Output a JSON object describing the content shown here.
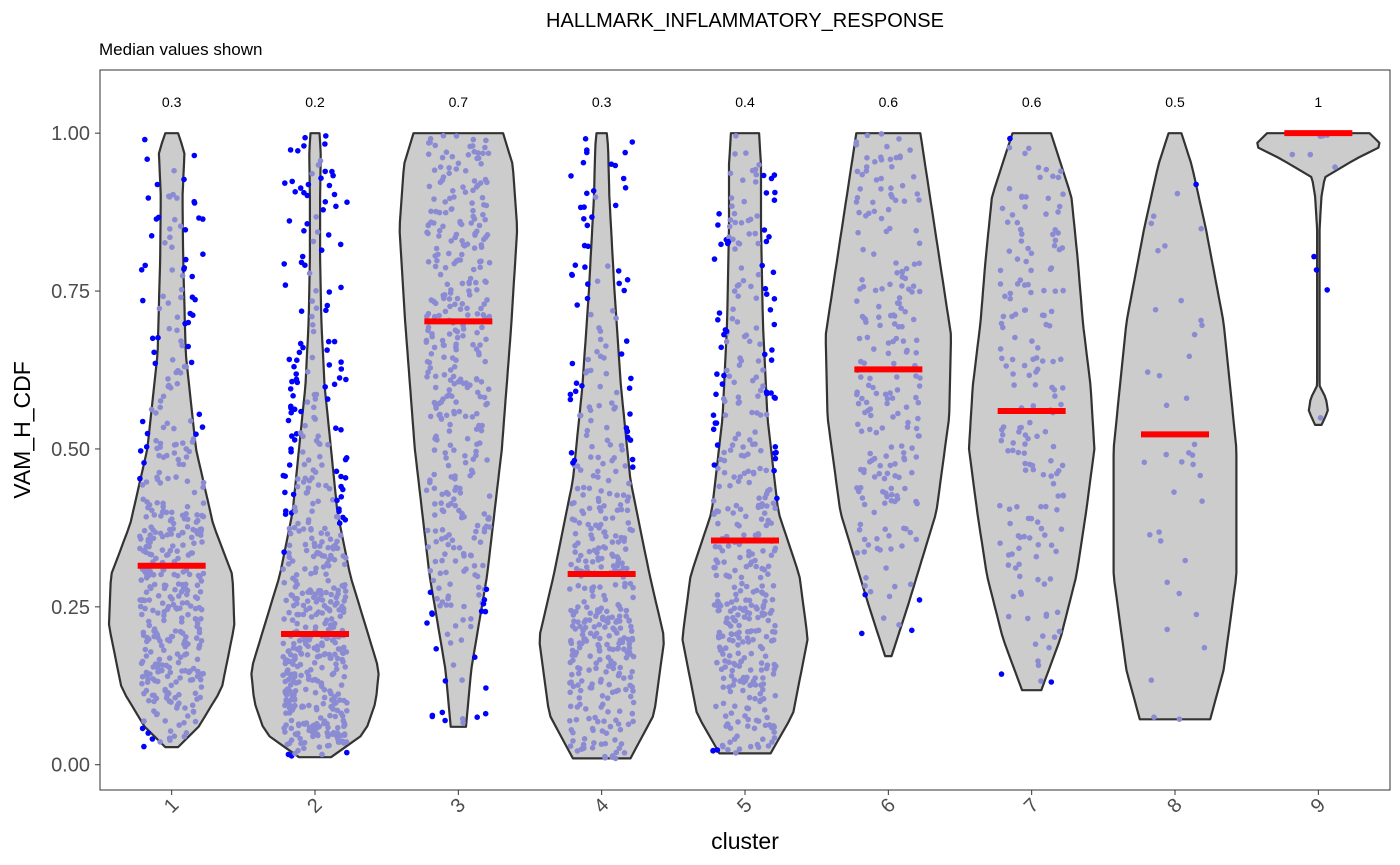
{
  "chart_data": {
    "type": "violin",
    "title": "HALLMARK_INFLAMMATORY_RESPONSE",
    "subtitle": "Median values shown",
    "xlabel": "cluster",
    "ylabel": "VAM_H_CDF",
    "categories": [
      "1",
      "2",
      "3",
      "4",
      "5",
      "6",
      "7",
      "8",
      "9"
    ],
    "ylim": [
      -0.04,
      1.1
    ],
    "yticks": [
      0.0,
      0.25,
      0.5,
      0.75,
      1.0
    ],
    "ytick_labels": [
      "0.00",
      "0.25",
      "0.50",
      "0.75",
      "1.00"
    ],
    "median_labels": [
      "0.3",
      "0.2",
      "0.7",
      "0.3",
      "0.4",
      "0.6",
      "0.6",
      "0.5",
      "1"
    ],
    "medians": [
      0.315,
      0.207,
      0.702,
      0.302,
      0.355,
      0.626,
      0.56,
      0.523,
      1.0
    ],
    "ranges": [
      [
        0.028,
        1.0
      ],
      [
        0.012,
        1.0
      ],
      [
        0.06,
        1.0
      ],
      [
        0.01,
        1.0
      ],
      [
        0.018,
        1.0
      ],
      [
        0.172,
        1.0
      ],
      [
        0.118,
        1.0
      ],
      [
        0.072,
        1.0
      ],
      [
        0.538,
        1.0
      ]
    ],
    "violin_profiles": [
      [
        [
          0.028,
          0.1
        ],
        [
          0.06,
          0.42
        ],
        [
          0.12,
          0.78
        ],
        [
          0.22,
          0.98
        ],
        [
          0.3,
          0.95
        ],
        [
          0.38,
          0.65
        ],
        [
          0.5,
          0.38
        ],
        [
          0.65,
          0.22
        ],
        [
          0.8,
          0.18
        ],
        [
          0.9,
          0.17
        ],
        [
          0.97,
          0.2
        ],
        [
          1.0,
          0.1
        ]
      ],
      [
        [
          0.012,
          0.25
        ],
        [
          0.05,
          0.78
        ],
        [
          0.1,
          0.95
        ],
        [
          0.15,
          1.0
        ],
        [
          0.2,
          0.85
        ],
        [
          0.3,
          0.55
        ],
        [
          0.4,
          0.35
        ],
        [
          0.5,
          0.25
        ],
        [
          0.6,
          0.15
        ],
        [
          0.7,
          0.1
        ],
        [
          0.8,
          0.08
        ],
        [
          0.9,
          0.08
        ],
        [
          0.97,
          0.09
        ],
        [
          1.0,
          0.07
        ]
      ],
      [
        [
          0.06,
          0.12
        ],
        [
          0.15,
          0.2
        ],
        [
          0.3,
          0.45
        ],
        [
          0.5,
          0.68
        ],
        [
          0.7,
          0.83
        ],
        [
          0.85,
          0.92
        ],
        [
          0.95,
          0.85
        ],
        [
          1.0,
          0.7
        ]
      ],
      [
        [
          0.01,
          0.45
        ],
        [
          0.08,
          0.82
        ],
        [
          0.2,
          0.98
        ],
        [
          0.3,
          0.75
        ],
        [
          0.45,
          0.45
        ],
        [
          0.6,
          0.3
        ],
        [
          0.75,
          0.2
        ],
        [
          0.9,
          0.12
        ],
        [
          0.98,
          0.1
        ],
        [
          1.0,
          0.08
        ]
      ],
      [
        [
          0.018,
          0.4
        ],
        [
          0.08,
          0.75
        ],
        [
          0.2,
          0.98
        ],
        [
          0.3,
          0.85
        ],
        [
          0.4,
          0.52
        ],
        [
          0.55,
          0.35
        ],
        [
          0.7,
          0.28
        ],
        [
          0.85,
          0.25
        ],
        [
          0.95,
          0.25
        ],
        [
          1.0,
          0.22
        ]
      ],
      [
        [
          0.172,
          0.05
        ],
        [
          0.25,
          0.3
        ],
        [
          0.4,
          0.75
        ],
        [
          0.55,
          0.95
        ],
        [
          0.68,
          0.98
        ],
        [
          0.8,
          0.8
        ],
        [
          0.9,
          0.65
        ],
        [
          1.0,
          0.5
        ]
      ],
      [
        [
          0.118,
          0.15
        ],
        [
          0.2,
          0.45
        ],
        [
          0.3,
          0.7
        ],
        [
          0.4,
          0.85
        ],
        [
          0.5,
          0.98
        ],
        [
          0.6,
          0.92
        ],
        [
          0.7,
          0.8
        ],
        [
          0.8,
          0.72
        ],
        [
          0.9,
          0.62
        ],
        [
          1.0,
          0.3
        ]
      ],
      [
        [
          0.072,
          0.55
        ],
        [
          0.15,
          0.76
        ],
        [
          0.3,
          0.96
        ],
        [
          0.5,
          0.96
        ],
        [
          0.7,
          0.76
        ],
        [
          0.85,
          0.48
        ],
        [
          0.95,
          0.26
        ],
        [
          1.0,
          0.1
        ]
      ],
      [
        [
          0.538,
          0.05
        ],
        [
          0.56,
          0.15
        ],
        [
          0.58,
          0.12
        ],
        [
          0.6,
          0.02
        ],
        [
          0.85,
          0.02
        ],
        [
          0.9,
          0.05
        ],
        [
          0.93,
          0.1
        ],
        [
          0.96,
          0.6
        ],
        [
          0.98,
          1.0
        ],
        [
          1.0,
          0.8
        ]
      ]
    ],
    "point_counts": [
      420,
      520,
      380,
      400,
      420,
      220,
      180,
      40,
      10
    ],
    "fill_color": "#cccccc",
    "outline_color": "#333333",
    "point_color": "#8b8bd3",
    "outlier_point_color": "#0000ff",
    "median_color": "#ff0000",
    "grid": false
  }
}
